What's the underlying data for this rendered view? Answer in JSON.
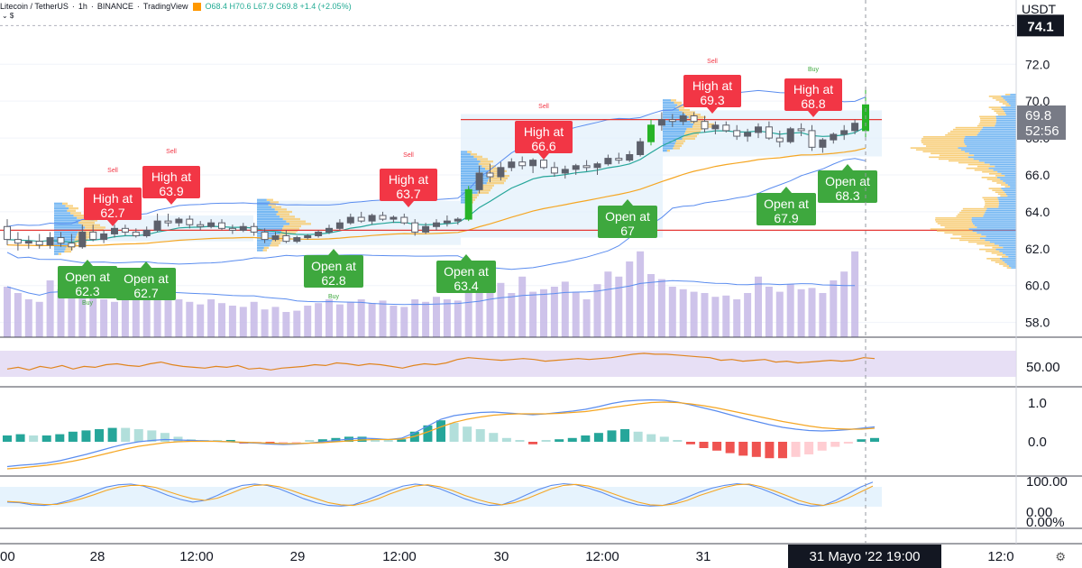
{
  "header": {
    "symbol": "Litecoin / TetherUS",
    "interval": "1h",
    "exchange": "BINANCE",
    "platform": "TradingView",
    "ohlc": "O68.4 H70.6 L67.9 C69.8 +1.4 (+2.05%)",
    "sub": "⌄ $"
  },
  "colors": {
    "bull": "#22ab94",
    "bear": "#ef5350",
    "candle": "#5d606b",
    "green_candle": "#27b327",
    "bb": "#5b8def",
    "ema_fast": "#26a69a",
    "ema_slow": "#f5a623",
    "vp_blue": "#5aa9f0",
    "vp_yellow": "#f7c96a",
    "volume": "#c5b8e6",
    "rsi": "#e0851f",
    "rsi_band": "#e1d7f2",
    "macd": "#5b8def",
    "signal": "#f5a623",
    "stoch_k": "#5b8def",
    "stoch_d": "#f5a623",
    "resistance": "#e53935",
    "label_red": "#f23645",
    "label_green": "#3ea83e"
  },
  "price_axis": {
    "unit": "USDT",
    "ticks": [
      "72.0",
      "70.0",
      "68.0",
      "66.0",
      "64.0",
      "62.0",
      "60.0",
      "58.0"
    ],
    "high_marker": "74.1",
    "current_price": "69.8",
    "countdown": "52:56"
  },
  "rsi_axis": {
    "ticks": [
      "50.00"
    ]
  },
  "macd_axis": {
    "ticks": [
      "1.0",
      "0.0"
    ]
  },
  "stoch_axis": {
    "ticks": [
      "100.00",
      "0.00"
    ]
  },
  "bottom_axis": {
    "ticks": [
      "0.00%"
    ]
  },
  "time_axis": {
    "ticks": [
      "00",
      "28",
      "12:00",
      "29",
      "12:00",
      "30",
      "12:00",
      "31",
      "12:0"
    ],
    "cursor_label": "31 Mayo '22   19:00"
  },
  "annotations": {
    "small": [
      {
        "text": "Sell",
        "color": "red"
      },
      {
        "text": "Sell",
        "color": "red"
      },
      {
        "text": "Sell",
        "color": "red"
      },
      {
        "text": "Sell",
        "color": "red"
      },
      {
        "text": "Sell",
        "color": "red"
      },
      {
        "text": "Buy",
        "color": "green"
      },
      {
        "text": "Buy",
        "color": "green"
      },
      {
        "text": "Buy",
        "color": "green"
      }
    ],
    "high_labels": [
      {
        "line1": "High at",
        "line2": "62.7"
      },
      {
        "line1": "High at",
        "line2": "63.9"
      },
      {
        "line1": "High at",
        "line2": "63.7"
      },
      {
        "line1": "High at",
        "line2": "66.6"
      },
      {
        "line1": "High at",
        "line2": "69.3"
      },
      {
        "line1": "High at",
        "line2": "68.8"
      }
    ],
    "open_labels": [
      {
        "line1": "Open at",
        "line2": "62.3"
      },
      {
        "line1": "Open at",
        "line2": "62.7"
      },
      {
        "line1": "Open at",
        "line2": "62.8"
      },
      {
        "line1": "Open at",
        "line2": "63.4"
      },
      {
        "line1": "Open at",
        "line2": "67"
      },
      {
        "line1": "Open at",
        "line2": "67.9"
      },
      {
        "line1": "Open at",
        "line2": "68.3"
      }
    ]
  },
  "chart_data": {
    "type": "candlestick",
    "price_range": [
      57,
      75
    ],
    "resistance_line": 69.0,
    "support_line": 63.0,
    "candles": [
      {
        "o": 63.2,
        "h": 63.6,
        "l": 62.2,
        "c": 62.5
      },
      {
        "o": 62.5,
        "h": 62.9,
        "l": 61.9,
        "c": 62.3
      },
      {
        "o": 62.3,
        "h": 62.7,
        "l": 62.0,
        "c": 62.4
      },
      {
        "o": 62.4,
        "h": 62.8,
        "l": 62.0,
        "c": 62.2
      },
      {
        "o": 62.2,
        "h": 62.9,
        "l": 62.0,
        "c": 62.6
      },
      {
        "o": 62.6,
        "h": 62.9,
        "l": 62.1,
        "c": 62.3
      },
      {
        "o": 62.3,
        "h": 62.8,
        "l": 61.9,
        "c": 62.1
      },
      {
        "o": 62.1,
        "h": 63.3,
        "l": 62.0,
        "c": 62.9
      },
      {
        "o": 62.9,
        "h": 63.3,
        "l": 62.4,
        "c": 62.5
      },
      {
        "o": 62.5,
        "h": 63.0,
        "l": 62.3,
        "c": 62.8
      },
      {
        "o": 62.8,
        "h": 63.3,
        "l": 62.6,
        "c": 63.1
      },
      {
        "o": 63.1,
        "h": 63.3,
        "l": 62.7,
        "c": 62.9
      },
      {
        "o": 62.9,
        "h": 63.1,
        "l": 62.6,
        "c": 62.7
      },
      {
        "o": 62.7,
        "h": 63.2,
        "l": 62.6,
        "c": 63.0
      },
      {
        "o": 63.0,
        "h": 63.9,
        "l": 62.9,
        "c": 63.5
      },
      {
        "o": 63.5,
        "h": 63.9,
        "l": 63.2,
        "c": 63.4
      },
      {
        "o": 63.4,
        "h": 63.7,
        "l": 63.2,
        "c": 63.6
      },
      {
        "o": 63.6,
        "h": 63.8,
        "l": 63.1,
        "c": 63.3
      },
      {
        "o": 63.3,
        "h": 63.5,
        "l": 63.0,
        "c": 63.2
      },
      {
        "o": 63.2,
        "h": 63.6,
        "l": 63.1,
        "c": 63.4
      },
      {
        "o": 63.4,
        "h": 63.6,
        "l": 63.0,
        "c": 63.1
      },
      {
        "o": 63.1,
        "h": 63.3,
        "l": 62.8,
        "c": 63.0
      },
      {
        "o": 63.0,
        "h": 63.4,
        "l": 62.9,
        "c": 63.2
      },
      {
        "o": 63.2,
        "h": 63.4,
        "l": 62.7,
        "c": 62.9
      },
      {
        "o": 62.9,
        "h": 63.1,
        "l": 62.3,
        "c": 62.5
      },
      {
        "o": 62.5,
        "h": 62.9,
        "l": 62.4,
        "c": 62.7
      },
      {
        "o": 62.7,
        "h": 63.0,
        "l": 62.3,
        "c": 62.4
      },
      {
        "o": 62.4,
        "h": 62.7,
        "l": 62.3,
        "c": 62.6
      },
      {
        "o": 62.6,
        "h": 62.8,
        "l": 62.5,
        "c": 62.7
      },
      {
        "o": 62.7,
        "h": 63.0,
        "l": 62.6,
        "c": 62.9
      },
      {
        "o": 62.9,
        "h": 63.3,
        "l": 62.8,
        "c": 63.1
      },
      {
        "o": 63.1,
        "h": 63.6,
        "l": 63.0,
        "c": 63.4
      },
      {
        "o": 63.4,
        "h": 63.9,
        "l": 63.3,
        "c": 63.7
      },
      {
        "o": 63.7,
        "h": 64.0,
        "l": 63.4,
        "c": 63.5
      },
      {
        "o": 63.5,
        "h": 63.9,
        "l": 63.3,
        "c": 63.8
      },
      {
        "o": 63.8,
        "h": 64.0,
        "l": 63.5,
        "c": 63.6
      },
      {
        "o": 63.6,
        "h": 63.8,
        "l": 63.4,
        "c": 63.7
      },
      {
        "o": 63.7,
        "h": 63.9,
        "l": 63.3,
        "c": 63.4
      },
      {
        "o": 63.4,
        "h": 63.6,
        "l": 62.7,
        "c": 62.9
      },
      {
        "o": 62.9,
        "h": 63.4,
        "l": 62.8,
        "c": 63.2
      },
      {
        "o": 63.2,
        "h": 63.6,
        "l": 63.0,
        "c": 63.4
      },
      {
        "o": 63.4,
        "h": 63.8,
        "l": 63.2,
        "c": 63.5
      },
      {
        "o": 63.5,
        "h": 63.7,
        "l": 63.3,
        "c": 63.6
      },
      {
        "o": 63.6,
        "h": 65.4,
        "l": 63.5,
        "c": 65.2
      },
      {
        "o": 65.2,
        "h": 66.5,
        "l": 65.0,
        "c": 66.1
      },
      {
        "o": 66.1,
        "h": 66.6,
        "l": 65.6,
        "c": 65.9
      },
      {
        "o": 65.9,
        "h": 66.7,
        "l": 65.7,
        "c": 66.4
      },
      {
        "o": 66.4,
        "h": 66.9,
        "l": 66.2,
        "c": 66.7
      },
      {
        "o": 66.7,
        "h": 67.0,
        "l": 66.3,
        "c": 66.5
      },
      {
        "o": 66.5,
        "h": 66.9,
        "l": 66.1,
        "c": 66.8
      },
      {
        "o": 66.8,
        "h": 67.0,
        "l": 66.3,
        "c": 66.4
      },
      {
        "o": 66.4,
        "h": 66.7,
        "l": 65.9,
        "c": 66.1
      },
      {
        "o": 66.1,
        "h": 66.5,
        "l": 65.8,
        "c": 66.3
      },
      {
        "o": 66.3,
        "h": 66.6,
        "l": 66.0,
        "c": 66.5
      },
      {
        "o": 66.5,
        "h": 66.8,
        "l": 66.2,
        "c": 66.4
      },
      {
        "o": 66.4,
        "h": 66.7,
        "l": 66.0,
        "c": 66.6
      },
      {
        "o": 66.6,
        "h": 67.1,
        "l": 66.5,
        "c": 66.9
      },
      {
        "o": 66.9,
        "h": 67.2,
        "l": 66.6,
        "c": 66.8
      },
      {
        "o": 66.8,
        "h": 67.3,
        "l": 66.7,
        "c": 67.1
      },
      {
        "o": 67.1,
        "h": 68.0,
        "l": 67.0,
        "c": 67.8
      },
      {
        "o": 67.8,
        "h": 69.0,
        "l": 67.6,
        "c": 68.7
      },
      {
        "o": 68.7,
        "h": 69.4,
        "l": 68.4,
        "c": 69.0
      },
      {
        "o": 69.0,
        "h": 69.3,
        "l": 68.6,
        "c": 68.9
      },
      {
        "o": 68.9,
        "h": 69.4,
        "l": 68.7,
        "c": 69.2
      },
      {
        "o": 69.2,
        "h": 69.4,
        "l": 68.8,
        "c": 68.9
      },
      {
        "o": 68.9,
        "h": 69.2,
        "l": 68.3,
        "c": 68.5
      },
      {
        "o": 68.5,
        "h": 68.9,
        "l": 68.2,
        "c": 68.7
      },
      {
        "o": 68.7,
        "h": 68.9,
        "l": 68.3,
        "c": 68.4
      },
      {
        "o": 68.4,
        "h": 68.7,
        "l": 67.9,
        "c": 68.1
      },
      {
        "o": 68.1,
        "h": 68.5,
        "l": 67.8,
        "c": 68.3
      },
      {
        "o": 68.3,
        "h": 68.8,
        "l": 68.0,
        "c": 68.6
      },
      {
        "o": 68.6,
        "h": 68.9,
        "l": 67.9,
        "c": 68.0
      },
      {
        "o": 68.0,
        "h": 68.4,
        "l": 67.5,
        "c": 67.8
      },
      {
        "o": 67.8,
        "h": 68.6,
        "l": 67.7,
        "c": 68.5
      },
      {
        "o": 68.5,
        "h": 68.8,
        "l": 68.1,
        "c": 68.4
      },
      {
        "o": 68.4,
        "h": 68.7,
        "l": 67.3,
        "c": 67.5
      },
      {
        "o": 67.5,
        "h": 68.0,
        "l": 67.2,
        "c": 67.9
      },
      {
        "o": 67.9,
        "h": 68.3,
        "l": 67.7,
        "c": 68.2
      },
      {
        "o": 68.2,
        "h": 68.7,
        "l": 67.9,
        "c": 68.4
      },
      {
        "o": 68.4,
        "h": 69.0,
        "l": 68.2,
        "c": 68.8
      },
      {
        "o": 68.4,
        "h": 70.6,
        "l": 67.9,
        "c": 69.8
      }
    ],
    "volume": [
      40,
      35,
      30,
      28,
      45,
      38,
      33,
      50,
      36,
      30,
      28,
      32,
      30,
      35,
      42,
      38,
      30,
      28,
      26,
      30,
      27,
      25,
      24,
      28,
      22,
      24,
      20,
      21,
      25,
      27,
      30,
      26,
      28,
      30,
      27,
      29,
      25,
      24,
      30,
      28,
      32,
      30,
      29,
      45,
      40,
      55,
      43,
      35,
      48,
      36,
      38,
      40,
      44,
      36,
      30,
      42,
      52,
      48,
      60,
      68,
      50,
      46,
      40,
      38,
      36,
      35,
      32,
      33,
      30,
      35,
      48,
      40,
      36,
      42,
      38,
      39,
      35,
      45,
      52,
      68
    ],
    "rsi": [
      49,
      51,
      48,
      52,
      50,
      53,
      49,
      52,
      51,
      54,
      55,
      53,
      52,
      55,
      57,
      54,
      52,
      51,
      50,
      52,
      51,
      53,
      49,
      50,
      48,
      50,
      51,
      52,
      54,
      53,
      56,
      55,
      53,
      55,
      54,
      52,
      50,
      53,
      55,
      54,
      56,
      60,
      62,
      61,
      60,
      59,
      60,
      61,
      60,
      58,
      59,
      60,
      61,
      60,
      61,
      62,
      64,
      66,
      67,
      66,
      66,
      65,
      64,
      63,
      62,
      59,
      60,
      58,
      59,
      60,
      57,
      58,
      56,
      57,
      58,
      59,
      58,
      59,
      62,
      61
    ],
    "macd": [
      -0.55,
      -0.52,
      -0.5,
      -0.47,
      -0.42,
      -0.35,
      -0.28,
      -0.2,
      -0.12,
      -0.05,
      0.0,
      0.03,
      0.05,
      0.04,
      0.03,
      0.02,
      0.01,
      0.0,
      -0.02,
      -0.03,
      -0.05,
      -0.06,
      -0.05,
      -0.03,
      0.0,
      0.03,
      0.06,
      0.08,
      0.07,
      0.05,
      0.08,
      0.2,
      0.35,
      0.5,
      0.58,
      0.62,
      0.65,
      0.66,
      0.64,
      0.62,
      0.6,
      0.62,
      0.65,
      0.68,
      0.72,
      0.78,
      0.85,
      0.9,
      0.92,
      0.93,
      0.92,
      0.88,
      0.82,
      0.75,
      0.68,
      0.6,
      0.52,
      0.45,
      0.38,
      0.32,
      0.28,
      0.25,
      0.24,
      0.25,
      0.27,
      0.3,
      0.33
    ],
    "macd_signal": [
      -0.6,
      -0.58,
      -0.55,
      -0.52,
      -0.48,
      -0.43,
      -0.37,
      -0.3,
      -0.23,
      -0.16,
      -0.1,
      -0.06,
      -0.02,
      0.0,
      0.01,
      0.01,
      0.01,
      0.0,
      -0.01,
      -0.02,
      -0.03,
      -0.04,
      -0.04,
      -0.03,
      -0.02,
      0.0,
      0.02,
      0.04,
      0.05,
      0.05,
      0.06,
      0.12,
      0.22,
      0.33,
      0.43,
      0.5,
      0.55,
      0.59,
      0.61,
      0.62,
      0.62,
      0.62,
      0.63,
      0.65,
      0.67,
      0.71,
      0.76,
      0.8,
      0.84,
      0.87,
      0.88,
      0.87,
      0.84,
      0.8,
      0.75,
      0.69,
      0.63,
      0.57,
      0.51,
      0.45,
      0.4,
      0.35,
      0.31,
      0.29,
      0.28,
      0.28,
      0.3
    ],
    "stoch_k": [
      30,
      28,
      22,
      20,
      25,
      35,
      48,
      62,
      75,
      82,
      84,
      78,
      65,
      50,
      38,
      30,
      35,
      50,
      68,
      80,
      84,
      80,
      70,
      55,
      40,
      28,
      20,
      18,
      22,
      35,
      50,
      65,
      78,
      84,
      80,
      70,
      55,
      40,
      28,
      20,
      22,
      35,
      52,
      68,
      80,
      85,
      82,
      72,
      60,
      45,
      32,
      22,
      18,
      20,
      30,
      45,
      60,
      72,
      80,
      85,
      82,
      70,
      55,
      40,
      25,
      18,
      20,
      35,
      55,
      75,
      90
    ],
    "stoch_d": [
      32,
      30,
      26,
      23,
      23,
      30,
      40,
      52,
      65,
      75,
      80,
      80,
      74,
      62,
      50,
      40,
      35,
      42,
      55,
      70,
      80,
      82,
      76,
      65,
      52,
      40,
      28,
      22,
      20,
      28,
      40,
      55,
      68,
      78,
      82,
      76,
      65,
      50,
      38,
      28,
      22,
      28,
      40,
      55,
      70,
      80,
      83,
      78,
      68,
      55,
      42,
      30,
      22,
      20,
      25,
      35,
      50,
      62,
      74,
      82,
      84,
      76,
      64,
      50,
      35,
      25,
      20,
      28,
      42,
      60,
      78
    ]
  }
}
